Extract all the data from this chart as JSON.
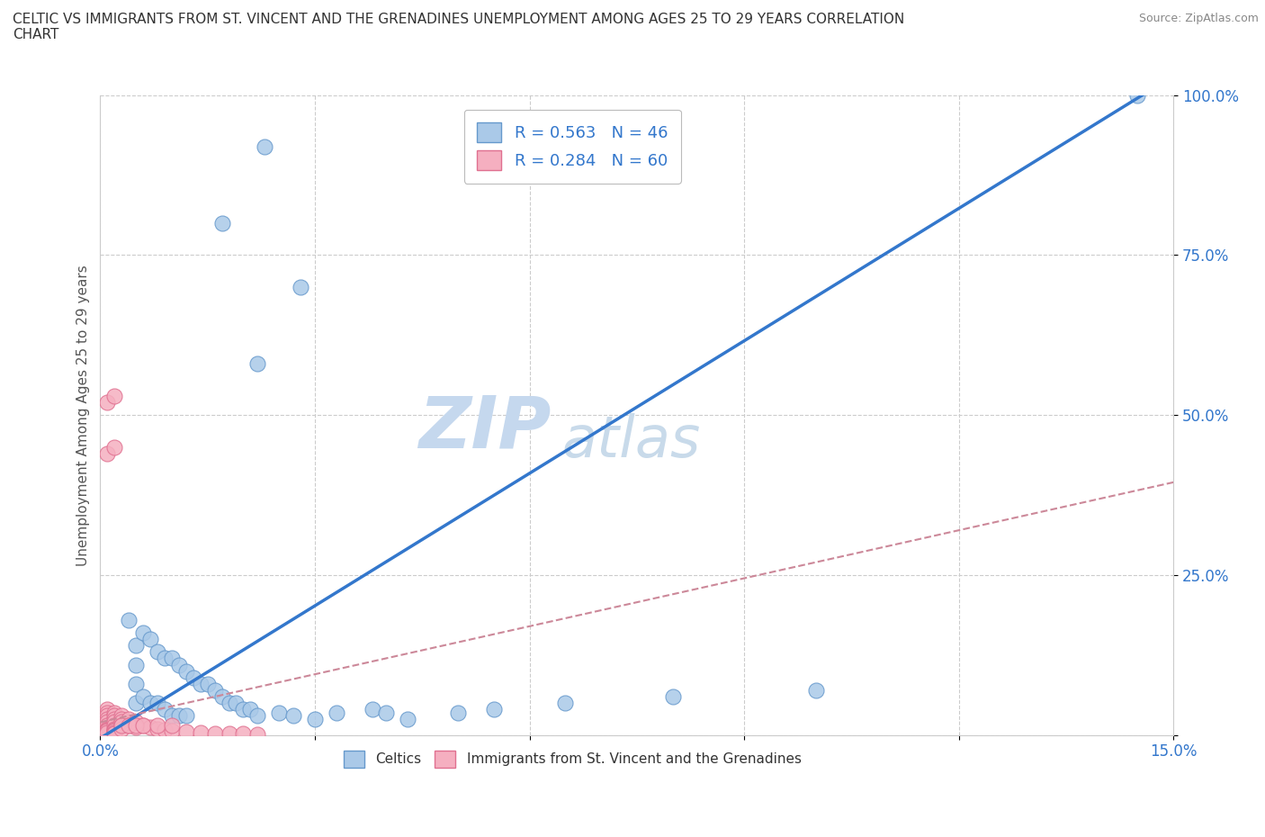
{
  "title": "CELTIC VS IMMIGRANTS FROM ST. VINCENT AND THE GRENADINES UNEMPLOYMENT AMONG AGES 25 TO 29 YEARS CORRELATION\nCHART",
  "source": "Source: ZipAtlas.com",
  "ylabel": "Unemployment Among Ages 25 to 29 years",
  "xlabel": "",
  "xlim": [
    0.0,
    0.15
  ],
  "ylim": [
    0.0,
    1.0
  ],
  "xticks": [
    0.0,
    0.03,
    0.06,
    0.09,
    0.12,
    0.15
  ],
  "xticklabels": [
    "0.0%",
    "",
    "",
    "",
    "",
    "15.0%"
  ],
  "yticks": [
    0.0,
    0.25,
    0.5,
    0.75,
    1.0
  ],
  "yticklabels": [
    "",
    "25.0%",
    "50.0%",
    "75.0%",
    "100.0%"
  ],
  "legend_r1": "R = 0.563   N = 46",
  "legend_r2": "R = 0.284   N = 60",
  "series1_color": "#aac9e8",
  "series2_color": "#f5afc0",
  "series1_edge": "#6699cc",
  "series2_edge": "#e07090",
  "line1_color": "#3377cc",
  "line2_color": "#cc8899",
  "watermark": "ZIPatlas",
  "watermark_color": "#dde8f5",
  "legend_color": "#3377cc",
  "celtics_x": [
    0.023,
    0.017,
    0.028,
    0.022,
    0.004,
    0.005,
    0.005,
    0.005,
    0.005,
    0.006,
    0.006,
    0.007,
    0.007,
    0.008,
    0.008,
    0.009,
    0.009,
    0.01,
    0.01,
    0.011,
    0.011,
    0.012,
    0.012,
    0.013,
    0.014,
    0.015,
    0.016,
    0.017,
    0.018,
    0.019,
    0.02,
    0.021,
    0.022,
    0.025,
    0.027,
    0.03,
    0.033,
    0.038,
    0.04,
    0.043,
    0.05,
    0.055,
    0.065,
    0.08,
    0.1,
    0.145
  ],
  "celtics_y": [
    0.92,
    0.8,
    0.7,
    0.58,
    0.18,
    0.14,
    0.11,
    0.08,
    0.05,
    0.16,
    0.06,
    0.15,
    0.05,
    0.13,
    0.05,
    0.12,
    0.04,
    0.12,
    0.03,
    0.11,
    0.03,
    0.1,
    0.03,
    0.09,
    0.08,
    0.08,
    0.07,
    0.06,
    0.05,
    0.05,
    0.04,
    0.04,
    0.03,
    0.035,
    0.03,
    0.025,
    0.035,
    0.04,
    0.035,
    0.025,
    0.035,
    0.04,
    0.05,
    0.06,
    0.07,
    1.0
  ],
  "svg_x": [
    0.001,
    0.001,
    0.001,
    0.001,
    0.001,
    0.001,
    0.001,
    0.001,
    0.001,
    0.001,
    0.001,
    0.001,
    0.001,
    0.001,
    0.001,
    0.001,
    0.001,
    0.001,
    0.001,
    0.001,
    0.002,
    0.002,
    0.002,
    0.002,
    0.002,
    0.002,
    0.002,
    0.002,
    0.002,
    0.002,
    0.003,
    0.003,
    0.003,
    0.003,
    0.003,
    0.004,
    0.004,
    0.005,
    0.005,
    0.006,
    0.007,
    0.008,
    0.009,
    0.01,
    0.012,
    0.014,
    0.016,
    0.018,
    0.02,
    0.022,
    0.001,
    0.001,
    0.002,
    0.002,
    0.003,
    0.004,
    0.005,
    0.006,
    0.008,
    0.01
  ],
  "svg_y": [
    0.03,
    0.025,
    0.02,
    0.018,
    0.015,
    0.012,
    0.01,
    0.008,
    0.006,
    0.005,
    0.04,
    0.035,
    0.03,
    0.025,
    0.02,
    0.015,
    0.01,
    0.008,
    0.006,
    0.004,
    0.035,
    0.03,
    0.025,
    0.02,
    0.015,
    0.01,
    0.008,
    0.006,
    0.004,
    0.003,
    0.03,
    0.025,
    0.02,
    0.015,
    0.01,
    0.025,
    0.015,
    0.02,
    0.012,
    0.015,
    0.012,
    0.01,
    0.008,
    0.006,
    0.005,
    0.004,
    0.003,
    0.002,
    0.002,
    0.001,
    0.52,
    0.44,
    0.53,
    0.45,
    0.015,
    0.015,
    0.015,
    0.015,
    0.015,
    0.015
  ],
  "line1_slope": 6.9,
  "line1_intercept": -0.005,
  "line2_slope": 2.5,
  "line2_intercept": 0.02
}
